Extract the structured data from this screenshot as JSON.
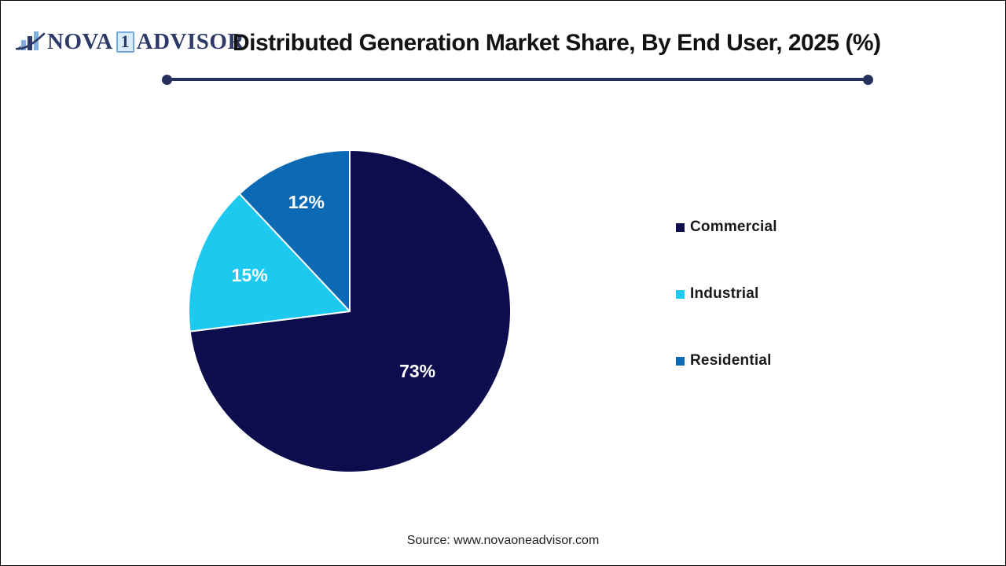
{
  "logo": {
    "word_1": "NOVA",
    "word_2": "1",
    "word_3": "ADVISOR",
    "navy": "#2e3a67",
    "light_blue": "#7faedc",
    "box_bg": "#d9eaf8",
    "box_border": "#76acdb"
  },
  "header": {
    "title": "Distributed Generation Market Share, By End User, 2025 (%)",
    "underline_color": "#25305c"
  },
  "chart_data": {
    "type": "pie",
    "title": "Distributed Generation Market Share, By End User, 2025 (%)",
    "categories": [
      "Commercial",
      "Industrial",
      "Residential"
    ],
    "values": [
      73,
      15,
      12
    ],
    "unit": "%",
    "slice_labels": [
      "73%",
      "15%",
      "12%"
    ],
    "colors": [
      "#0d0d4d",
      "#1ec9f0",
      "#0c69b4"
    ],
    "start_angle_deg": 0,
    "direction": "clockwise",
    "slice_border_color": "#ffffff",
    "label_color": "#ffffff",
    "legend_position": "right"
  },
  "legend": {
    "items": [
      {
        "label": "Commercial",
        "color": "#0d0d4d"
      },
      {
        "label": "Industrial",
        "color": "#1ec9f0"
      },
      {
        "label": "Residential",
        "color": "#0c69b4"
      }
    ]
  },
  "footer": {
    "source": "Source: www.novaoneadvisor.com"
  }
}
